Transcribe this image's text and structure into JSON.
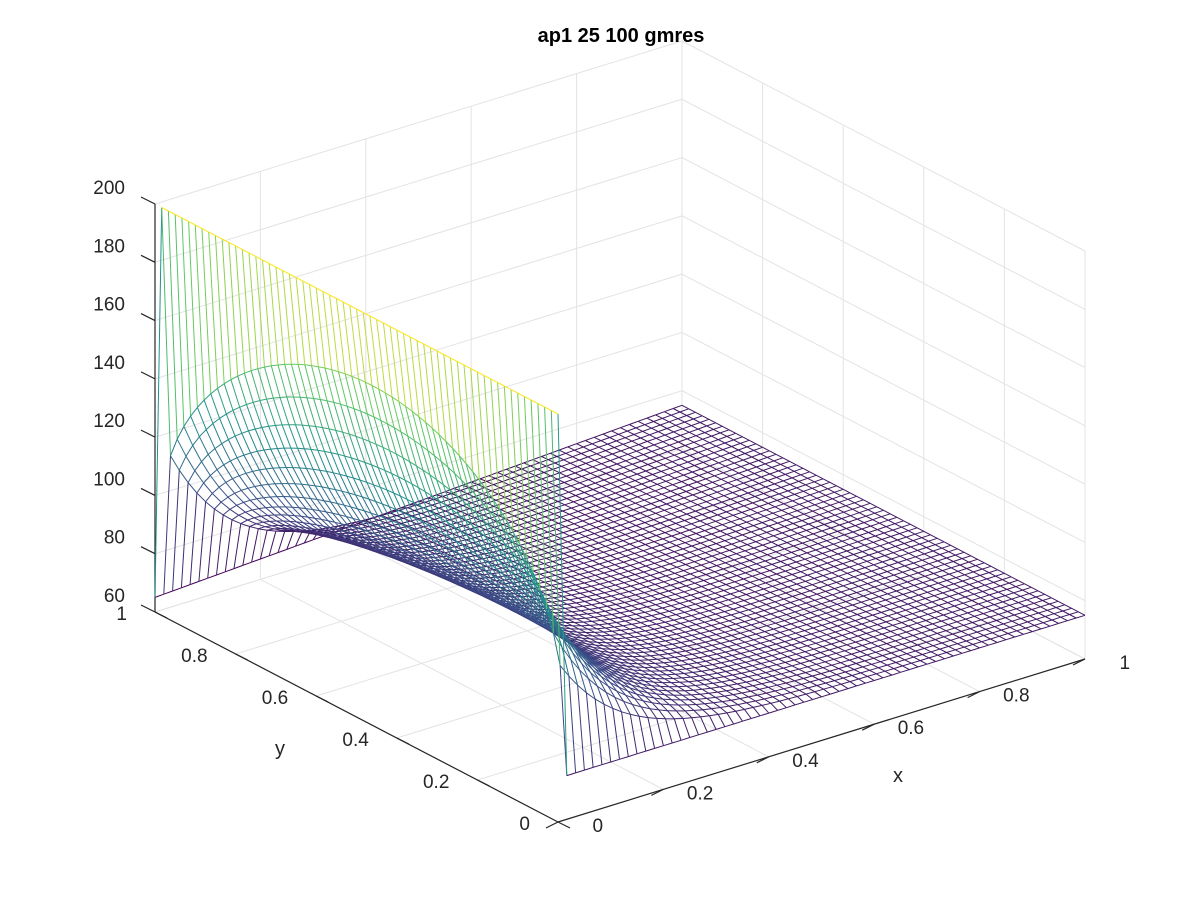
{
  "chart_data": {
    "type": "mesh3d",
    "title": "ap1 25 100 gmres",
    "xlabel": "x",
    "ylabel": "y",
    "zlabel": "",
    "xlim": [
      0,
      1
    ],
    "ylim": [
      0,
      1
    ],
    "zlim": [
      60,
      200
    ],
    "xticks": [
      "0",
      "0.2",
      "0.4",
      "0.6",
      "0.8",
      "1"
    ],
    "yticks": [
      "0",
      "0.2",
      "0.4",
      "0.6",
      "0.8",
      "1"
    ],
    "zticks": [
      "60",
      "80",
      "100",
      "120",
      "140",
      "160",
      "180",
      "200"
    ],
    "grid": true,
    "colormap": "viridis",
    "colormap_stops": [
      "#440154",
      "#3b528b",
      "#21918c",
      "#5ec962",
      "#fde725"
    ],
    "boundary_conditions": {
      "x0_edge": 200,
      "y1_edge_at_x0": 65,
      "y1_edge_at_x1": 75,
      "y0_edge": 75,
      "x1_edge": 75
    },
    "mesh_resolution": 60
  }
}
